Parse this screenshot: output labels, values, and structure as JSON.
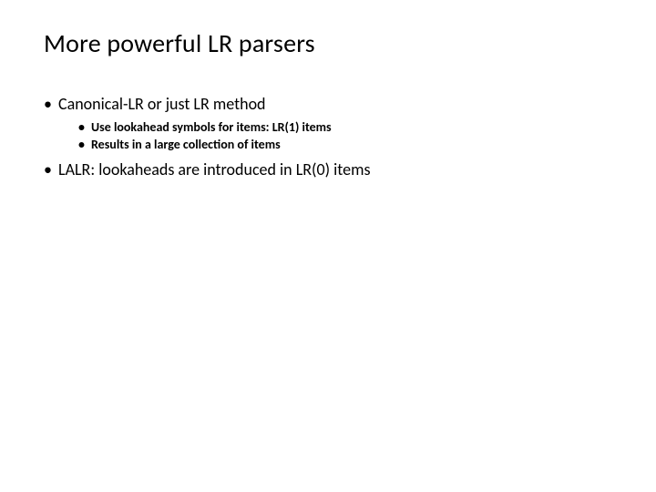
{
  "slide": {
    "title": "More powerful LR parsers",
    "bullets": [
      {
        "text": "Canonical-LR or just LR method",
        "sub": [
          "Use lookahead symbols for items: LR(1) items",
          "Results in a large collection of items"
        ]
      },
      {
        "text": "LALR: lookaheads are introduced in LR(0) items",
        "sub": []
      }
    ]
  },
  "style": {
    "background_color": "#ffffff",
    "text_color": "#000000",
    "title_fontsize": 28,
    "level1_fontsize": 18,
    "level2_fontsize": 14,
    "font_family": "Calibri"
  }
}
